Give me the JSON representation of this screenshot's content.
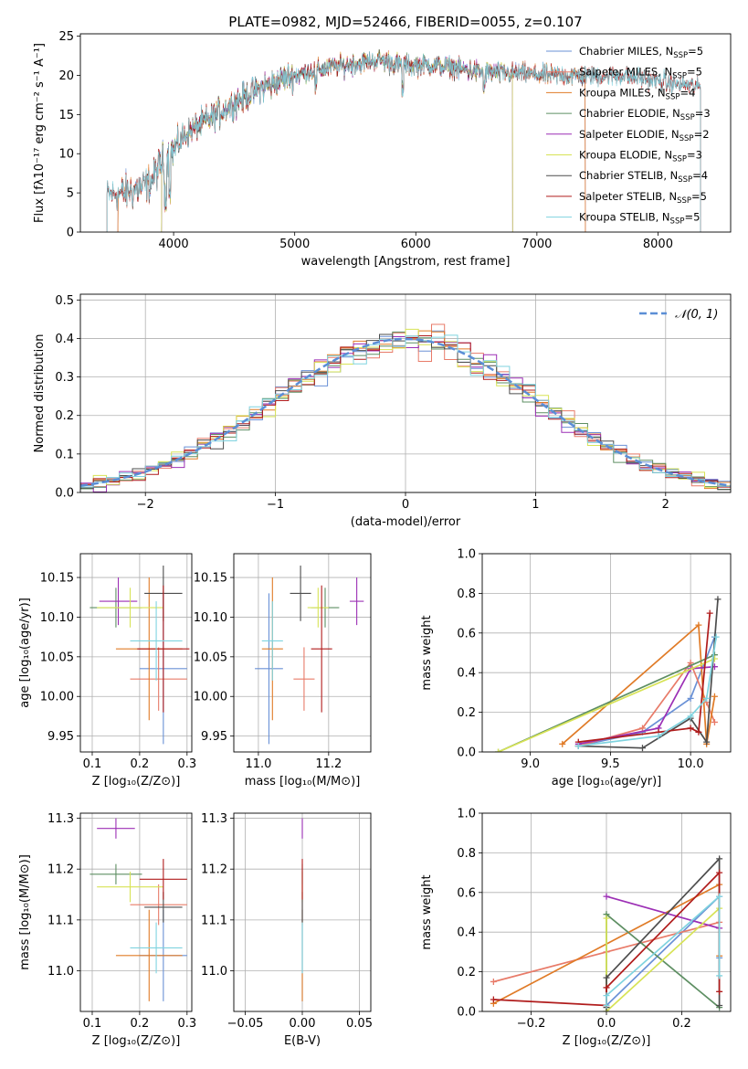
{
  "title": "PLATE=0982, MJD=52466, FIBERID=0055, z=0.107",
  "chart_data": [
    {
      "id": "spectrum",
      "type": "line",
      "xlabel": "wavelength [Angstrom, rest frame]",
      "ylabel": "Flux [fλ10⁻¹⁷ erg cm⁻² s⁻¹ A⁻¹]",
      "xlim": [
        3230,
        8600
      ],
      "ylim": [
        0,
        25.3
      ],
      "xticks": [
        4000,
        5000,
        6000,
        7000,
        8000
      ],
      "yticks": [
        0,
        5,
        10,
        15,
        20,
        25
      ],
      "grid": false,
      "legend_position": "upper-right",
      "continuum": {
        "x": [
          3450,
          3600,
          3700,
          3800,
          3900,
          4000,
          4100,
          4300,
          4500,
          4700,
          4900,
          5100,
          5300,
          5500,
          5700,
          5900,
          6100,
          6300,
          6500,
          6700,
          6900,
          7100,
          7300,
          7500,
          7700,
          7900,
          8100,
          8350
        ],
        "y": [
          4.8,
          5.0,
          5.5,
          6.2,
          8.8,
          10.5,
          12.5,
          14.5,
          16.5,
          18.2,
          19.5,
          20.5,
          21.0,
          21.5,
          22.0,
          21.3,
          21.3,
          21.0,
          20.5,
          20.3,
          20.2,
          20.0,
          20.0,
          19.9,
          20.0,
          19.5,
          19.0,
          18.5
        ]
      },
      "series": [
        {
          "name": "Chabrier MILES, N$_{SSP}$=5",
          "label": "Chabrier MILES, N",
          "sub": "SSP",
          "suffix": "=5",
          "color": "#6a91d6",
          "x_range": [
            3540,
            7400
          ]
        },
        {
          "name": "Salpeter MILES, N$_{SSP}$=5",
          "label": "Salpeter MILES, N",
          "sub": "SSP",
          "suffix": "=5",
          "color": "#e87b69",
          "x_range": [
            3540,
            7400
          ]
        },
        {
          "name": "Kroupa MILES, N$_{SSP}$=4",
          "label": "Kroupa MILES, N",
          "sub": "SSP",
          "suffix": "=4",
          "color": "#e07b27",
          "x_range": [
            3540,
            7400
          ]
        },
        {
          "name": "Chabrier ELODIE, N$_{SSP}$=3",
          "label": "Chabrier ELODIE, N",
          "sub": "SSP",
          "suffix": "=3",
          "color": "#5e8f63",
          "x_range": [
            3900,
            6800
          ]
        },
        {
          "name": "Salpeter ELODIE, N$_{SSP}$=2",
          "label": "Salpeter ELODIE, N",
          "sub": "SSP",
          "suffix": "=2",
          "color": "#9c2fb5",
          "x_range": [
            3900,
            6800
          ]
        },
        {
          "name": "Kroupa ELODIE, N$_{SSP}$=3",
          "label": "Kroupa ELODIE, N",
          "sub": "SSP",
          "suffix": "=3",
          "color": "#d7e356",
          "x_range": [
            3900,
            6800
          ]
        },
        {
          "name": "Chabrier STELIB, N$_{SSP}$=4",
          "label": "Chabrier STELIB, N",
          "sub": "SSP",
          "suffix": "=4",
          "color": "#4d4d4d",
          "x_range": [
            3450,
            8350
          ]
        },
        {
          "name": "Salpeter STELIB, N$_{SSP}$=5",
          "label": "Salpeter STELIB, N",
          "sub": "SSP",
          "suffix": "=5",
          "color": "#b01c1c",
          "x_range": [
            3450,
            8350
          ]
        },
        {
          "name": "Kroupa STELIB, N$_{SSP}$=5",
          "label": "Kroupa STELIB, N",
          "sub": "SSP",
          "suffix": "=5",
          "color": "#7fd3df",
          "x_range": [
            3450,
            8350
          ]
        }
      ]
    },
    {
      "id": "residuals",
      "type": "line",
      "xlabel": "(data-model)/error",
      "ylabel": "Normed distribution",
      "xlim": [
        -2.5,
        2.5
      ],
      "ylim": [
        0,
        0.515
      ],
      "xticks": [
        -2,
        -1,
        0,
        1,
        2
      ],
      "yticks": [
        0.0,
        0.1,
        0.2,
        0.3,
        0.4,
        0.5
      ],
      "grid": true,
      "bin_width": 0.1,
      "reference_curve": {
        "name": "𝒩(0, 1)",
        "color": "#5b8ed6",
        "dashed": true
      },
      "legend_position": "upper-right"
    },
    {
      "id": "age-vs-Z",
      "type": "scatter",
      "xlabel": "Z [log₁₀(Z/Z⊙)]",
      "ylabel": "age  [log₁₀(age/yr)]",
      "xlim": [
        0.075,
        0.31
      ],
      "ylim": [
        9.93,
        10.18
      ],
      "xticks": [
        0.1,
        0.2,
        0.3
      ],
      "yticks": [
        9.95,
        10.0,
        10.05,
        10.1,
        10.15
      ],
      "grid": true,
      "points": [
        {
          "color": "#6a91d6",
          "x": 0.25,
          "xerr": 0.05,
          "y": 10.035,
          "yerr": 0.095
        },
        {
          "color": "#e87b69",
          "x": 0.24,
          "xerr": 0.06,
          "y": 10.022,
          "yerr": 0.04
        },
        {
          "color": "#e07b27",
          "x": 0.22,
          "xerr": 0.07,
          "y": 10.06,
          "yerr": 0.09
        },
        {
          "color": "#5e8f63",
          "x": 0.15,
          "xerr": 0.055,
          "y": 10.112,
          "yerr": 0.025
        },
        {
          "color": "#9c2fb5",
          "x": 0.155,
          "xerr": 0.04,
          "y": 10.12,
          "yerr": 0.03
        },
        {
          "color": "#d7e356",
          "x": 0.18,
          "xerr": 0.07,
          "y": 10.112,
          "yerr": 0.025
        },
        {
          "color": "#4d4d4d",
          "x": 0.25,
          "xerr": 0.04,
          "y": 10.13,
          "yerr": 0.035
        },
        {
          "color": "#b01c1c",
          "x": 0.25,
          "xerr": 0.055,
          "y": 10.06,
          "yerr": 0.08
        },
        {
          "color": "#7fd3df",
          "x": 0.235,
          "xerr": 0.055,
          "y": 10.07,
          "yerr": 0.05
        }
      ]
    },
    {
      "id": "age-vs-mass",
      "type": "scatter",
      "xlabel": "mass [log₁₀(M/M⊙)]",
      "xlim": [
        10.93,
        11.32
      ],
      "ylim": [
        9.93,
        10.18
      ],
      "xticks": [
        11.0,
        11.2
      ],
      "yticks": [
        9.95,
        10.0,
        10.05,
        10.1,
        10.15
      ],
      "grid": true,
      "points": [
        {
          "color": "#6a91d6",
          "x": 11.03,
          "xerr": 0.04,
          "y": 10.035,
          "yerr": 0.095
        },
        {
          "color": "#e87b69",
          "x": 11.13,
          "xerr": 0.03,
          "y": 10.022,
          "yerr": 0.04
        },
        {
          "color": "#e07b27",
          "x": 11.04,
          "xerr": 0.03,
          "y": 10.06,
          "yerr": 0.09
        },
        {
          "color": "#5e8f63",
          "x": 11.19,
          "xerr": 0.04,
          "y": 10.112,
          "yerr": 0.025
        },
        {
          "color": "#9c2fb5",
          "x": 11.28,
          "xerr": 0.02,
          "y": 10.12,
          "yerr": 0.03
        },
        {
          "color": "#d7e356",
          "x": 11.17,
          "xerr": 0.03,
          "y": 10.112,
          "yerr": 0.025
        },
        {
          "color": "#4d4d4d",
          "x": 11.12,
          "xerr": 0.03,
          "y": 10.13,
          "yerr": 0.035
        },
        {
          "color": "#b01c1c",
          "x": 11.18,
          "xerr": 0.03,
          "y": 10.06,
          "yerr": 0.08
        },
        {
          "color": "#7fd3df",
          "x": 11.04,
          "xerr": 0.03,
          "y": 10.07,
          "yerr": 0.05
        }
      ]
    },
    {
      "id": "mass-weight-vs-age",
      "type": "line",
      "xlabel": "age  [log₁₀(age/yr)]",
      "ylabel": "mass weight",
      "xlim": [
        8.7,
        10.25
      ],
      "ylim": [
        0,
        1.0
      ],
      "xticks": [
        9.0,
        9.5,
        10.0
      ],
      "yticks": [
        0.0,
        0.2,
        0.4,
        0.6,
        0.8,
        1.0
      ],
      "grid": true,
      "series": [
        {
          "color": "#6a91d6",
          "x": [
            9.3,
            9.7,
            10.0,
            10.15
          ],
          "y": [
            0.03,
            0.1,
            0.27,
            0.58
          ]
        },
        {
          "color": "#e87b69",
          "x": [
            9.3,
            9.7,
            10.0,
            10.1,
            10.15
          ],
          "y": [
            0.03,
            0.12,
            0.45,
            0.25,
            0.15
          ]
        },
        {
          "color": "#e07b27",
          "x": [
            9.2,
            10.05,
            10.1,
            10.15
          ],
          "y": [
            0.04,
            0.64,
            0.04,
            0.28
          ]
        },
        {
          "color": "#5e8f63",
          "x": [
            8.8,
            10.15
          ],
          "y": [
            0.0,
            0.49
          ]
        },
        {
          "color": "#9c2fb5",
          "x": [
            9.3,
            9.8,
            10.0,
            10.15
          ],
          "y": [
            0.04,
            0.12,
            0.42,
            0.43
          ]
        },
        {
          "color": "#d7e356",
          "x": [
            8.8,
            10.15
          ],
          "y": [
            0.0,
            0.47
          ]
        },
        {
          "color": "#4d4d4d",
          "x": [
            9.3,
            9.7,
            10.0,
            10.1,
            10.17
          ],
          "y": [
            0.03,
            0.02,
            0.17,
            0.05,
            0.77
          ]
        },
        {
          "color": "#b01c1c",
          "x": [
            9.3,
            9.8,
            10.0,
            10.05,
            10.12
          ],
          "y": [
            0.05,
            0.1,
            0.12,
            0.1,
            0.7
          ]
        },
        {
          "color": "#7fd3df",
          "x": [
            9.3,
            9.8,
            10.0,
            10.1,
            10.16
          ],
          "y": [
            0.03,
            0.08,
            0.18,
            0.27,
            0.58
          ]
        }
      ]
    },
    {
      "id": "mass-vs-Z",
      "type": "scatter",
      "xlabel": "Z [log₁₀(Z/Z⊙)]",
      "ylabel": "mass [log₁₀(M/M⊙)]",
      "xlim": [
        0.075,
        0.31
      ],
      "ylim": [
        10.92,
        11.31
      ],
      "xticks": [
        0.1,
        0.2,
        0.3
      ],
      "yticks": [
        11.0,
        11.1,
        11.2,
        11.3
      ],
      "grid": true,
      "points": [
        {
          "color": "#6a91d6",
          "x": 0.25,
          "xerr": 0.05,
          "y": 11.03,
          "yerr": 0.09
        },
        {
          "color": "#e87b69",
          "x": 0.24,
          "xerr": 0.06,
          "y": 11.13,
          "yerr": 0.04
        },
        {
          "color": "#e07b27",
          "x": 0.22,
          "xerr": 0.07,
          "y": 11.03,
          "yerr": 0.09
        },
        {
          "color": "#5e8f63",
          "x": 0.15,
          "xerr": 0.055,
          "y": 11.19,
          "yerr": 0.02
        },
        {
          "color": "#9c2fb5",
          "x": 0.15,
          "xerr": 0.04,
          "y": 11.28,
          "yerr": 0.02
        },
        {
          "color": "#d7e356",
          "x": 0.18,
          "xerr": 0.07,
          "y": 11.165,
          "yerr": 0.03
        },
        {
          "color": "#4d4d4d",
          "x": 0.25,
          "xerr": 0.04,
          "y": 11.125,
          "yerr": 0.03
        },
        {
          "color": "#b01c1c",
          "x": 0.25,
          "xerr": 0.05,
          "y": 11.18,
          "yerr": 0.04
        },
        {
          "color": "#7fd3df",
          "x": 0.235,
          "xerr": 0.055,
          "y": 11.045,
          "yerr": 0.05
        }
      ]
    },
    {
      "id": "mass-vs-EBV",
      "type": "scatter",
      "xlabel": "E(B-V)",
      "xlim": [
        -0.06,
        0.06
      ],
      "ylim": [
        10.92,
        11.31
      ],
      "xticks": [
        -0.05,
        0.0,
        0.05
      ],
      "yticks": [
        11.0,
        11.1,
        11.2,
        11.3
      ],
      "grid": true,
      "points": [
        {
          "color": "#6a91d6",
          "x": 0.0,
          "xerr": 0.0,
          "y": 11.03,
          "yerr": 0.09
        },
        {
          "color": "#e87b69",
          "x": 0.0,
          "xerr": 0.0,
          "y": 11.13,
          "yerr": 0.04
        },
        {
          "color": "#e07b27",
          "x": 0.0,
          "xerr": 0.0,
          "y": 11.03,
          "yerr": 0.09
        },
        {
          "color": "#5e8f63",
          "x": 0.0,
          "xerr": 0.0,
          "y": 11.19,
          "yerr": 0.02
        },
        {
          "color": "#9c2fb5",
          "x": 0.0,
          "xerr": 0.0,
          "y": 11.28,
          "yerr": 0.02
        },
        {
          "color": "#d7e356",
          "x": 0.0,
          "xerr": 0.0,
          "y": 11.165,
          "yerr": 0.03
        },
        {
          "color": "#4d4d4d",
          "x": 0.0,
          "xerr": 0.0,
          "y": 11.125,
          "yerr": 0.03
        },
        {
          "color": "#b01c1c",
          "x": 0.0,
          "xerr": 0.0,
          "y": 11.18,
          "yerr": 0.04
        },
        {
          "color": "#7fd3df",
          "x": 0.0,
          "xerr": 0.0,
          "y": 11.045,
          "yerr": 0.05
        }
      ]
    },
    {
      "id": "mass-weight-vs-Z",
      "type": "line",
      "xlabel": "Z [log₁₀(Z/Z⊙)]",
      "ylabel": "mass weight",
      "xlim": [
        -0.33,
        0.33
      ],
      "ylim": [
        0,
        1.0
      ],
      "xticks": [
        -0.2,
        0.0,
        0.2
      ],
      "yticks": [
        0.0,
        0.2,
        0.4,
        0.6,
        0.8,
        1.0
      ],
      "grid": true,
      "series": [
        {
          "color": "#6a91d6",
          "x": [
            0.0,
            0.3,
            0.3
          ],
          "y": [
            0.03,
            0.58,
            0.27
          ]
        },
        {
          "color": "#e87b69",
          "x": [
            -0.3,
            0.0,
            0.3
          ],
          "y": [
            0.15,
            0.3,
            0.45
          ]
        },
        {
          "color": "#e07b27",
          "x": [
            -0.3,
            0.3,
            0.3
          ],
          "y": [
            0.04,
            0.64,
            0.28
          ]
        },
        {
          "color": "#5e8f63",
          "x": [
            0.0,
            0.0,
            0.3
          ],
          "y": [
            0.0,
            0.49,
            0.02
          ]
        },
        {
          "color": "#9c2fb5",
          "x": [
            0.0,
            0.3
          ],
          "y": [
            0.58,
            0.42
          ]
        },
        {
          "color": "#d7e356",
          "x": [
            0.0,
            0.0,
            0.3
          ],
          "y": [
            0.47,
            0.0,
            0.52
          ]
        },
        {
          "color": "#4d4d4d",
          "x": [
            0.0,
            0.0,
            0.3,
            0.3
          ],
          "y": [
            0.02,
            0.17,
            0.77,
            0.03
          ]
        },
        {
          "color": "#b01c1c",
          "x": [
            -0.3,
            0.0,
            0.0,
            0.3,
            0.3
          ],
          "y": [
            0.06,
            0.03,
            0.12,
            0.7,
            0.1
          ]
        },
        {
          "color": "#7fd3df",
          "x": [
            0.0,
            0.0,
            0.3,
            0.3
          ],
          "y": [
            0.03,
            0.08,
            0.58,
            0.18
          ]
        }
      ]
    }
  ]
}
